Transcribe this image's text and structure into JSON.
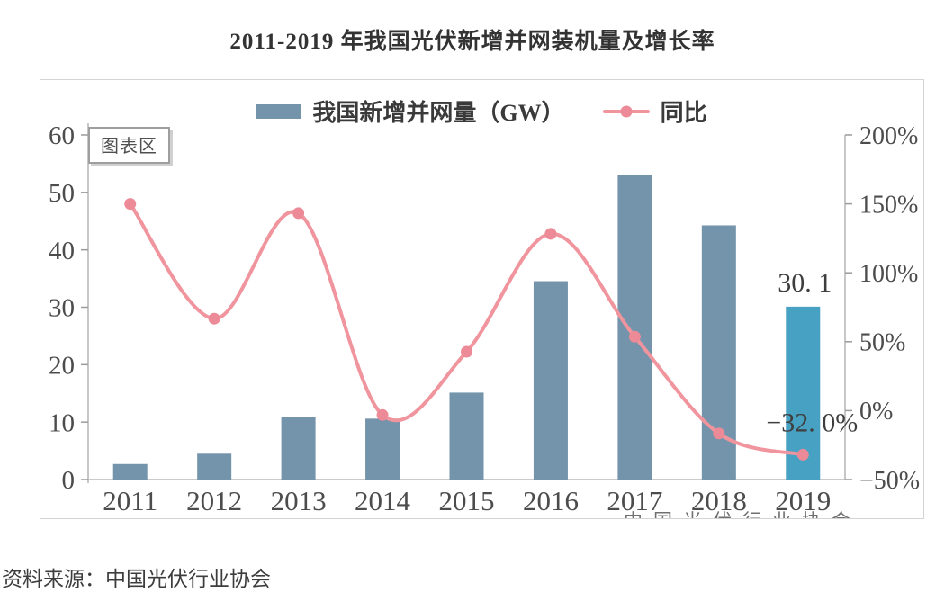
{
  "page": {
    "title": "2011-2019 年我国光伏新增并网装机量及增长率",
    "source_note": "资料来源：中国光伏行业协会",
    "watermark_fragment": "中国光伏行业协会"
  },
  "chart": {
    "plot_area_label": "图表区",
    "data_labels": {
      "bar_2019": "30. 1",
      "line_2019": "−32. 0%"
    }
  },
  "chart_data": {
    "type": "bar+line combo",
    "title": "2011-2019 年我国光伏新增并网装机量及增长率",
    "categories": [
      "2011",
      "2012",
      "2013",
      "2014",
      "2015",
      "2016",
      "2017",
      "2018",
      "2019"
    ],
    "series": [
      {
        "name": "我国新增并网量（GW）",
        "type": "bar",
        "axis": "left",
        "color": "#7494ab",
        "highlight_color": "#46a1c3",
        "highlight_index": 8,
        "values": [
          2.7,
          4.5,
          10.95,
          10.6,
          15.13,
          34.54,
          53.06,
          44.26,
          30.1
        ]
      },
      {
        "name": "同比",
        "type": "line",
        "axis": "right",
        "color": "#f0949e",
        "marker_color": "#ed8a97",
        "values": [
          150,
          66.7,
          143.3,
          -3.2,
          42.7,
          128.3,
          53.6,
          -16.6,
          -32.0
        ]
      }
    ],
    "left_axis": {
      "min": 0,
      "max": 60,
      "ticks": [
        {
          "label": "60",
          "value": 60
        },
        {
          "label": "50",
          "value": 50
        },
        {
          "label": "40",
          "value": 40
        },
        {
          "label": "30",
          "value": 30
        },
        {
          "label": "20",
          "value": 20
        },
        {
          "label": "10",
          "value": 10
        },
        {
          "label": "0",
          "value": 0
        }
      ]
    },
    "right_axis": {
      "min": -50,
      "max": 200,
      "ticks": [
        {
          "label": "200%",
          "value": 200
        },
        {
          "label": "150%",
          "value": 150
        },
        {
          "label": "100%",
          "value": 100
        },
        {
          "label": "50%",
          "value": 50
        },
        {
          "label": "0%",
          "value": 0
        },
        {
          "label": "−50%",
          "value": -50
        }
      ]
    },
    "legend_position": "top-center",
    "grid": false
  }
}
